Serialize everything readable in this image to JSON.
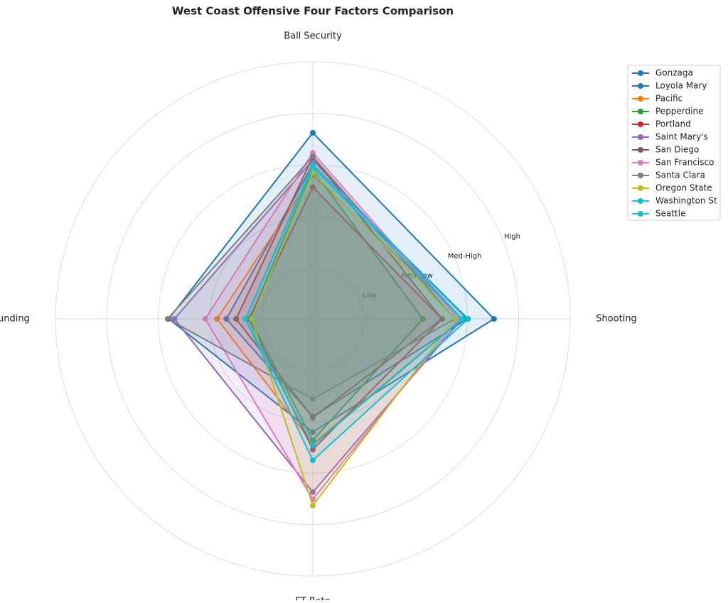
{
  "chart_data": {
    "type": "radar",
    "title": "West Coast Offensive Four Factors Comparison",
    "categories": [
      "Shooting",
      "Ball Security",
      "Off Rebounding",
      "FT Rate"
    ],
    "ylim": [
      0,
      5
    ],
    "yticks": [
      {
        "value": 1,
        "label": "Low"
      },
      {
        "value": 2,
        "label": "Med-Low"
      },
      {
        "value": 3,
        "label": "Med-High"
      },
      {
        "value": 4,
        "label": "High"
      }
    ],
    "grid": true,
    "legend": "upper right",
    "series": [
      {
        "name": "Gonzaga",
        "color": "#1f77b4",
        "values": [
          3.52,
          3.62,
          2.8,
          2.2
        ]
      },
      {
        "name": "Loyola Mary",
        "color": "#1f77b4",
        "values": [
          3.0,
          3.0,
          1.68,
          1.9
        ]
      },
      {
        "name": "Pacific",
        "color": "#ff7f0e",
        "values": [
          2.9,
          2.8,
          1.86,
          2.43
        ]
      },
      {
        "name": "Pepperdine",
        "color": "#2ca02c",
        "values": [
          2.14,
          2.9,
          1.22,
          2.36
        ]
      },
      {
        "name": "Portland",
        "color": "#d62728",
        "values": [
          2.51,
          2.56,
          1.24,
          2.54
        ]
      },
      {
        "name": "Saint Mary's",
        "color": "#9467bd",
        "values": [
          2.9,
          3.09,
          2.69,
          3.37
        ]
      },
      {
        "name": "San Diego",
        "color": "#8c564b",
        "values": [
          2.51,
          3.15,
          1.49,
          1.92
        ]
      },
      {
        "name": "San Francisco",
        "color": "#e377c2",
        "values": [
          2.83,
          3.23,
          2.09,
          3.51
        ]
      },
      {
        "name": "Santa Clara",
        "color": "#7f7f7f",
        "values": [
          2.76,
          3.16,
          2.82,
          1.56
        ]
      },
      {
        "name": "Oregon State",
        "color": "#bcbd22",
        "values": [
          2.76,
          2.85,
          1.19,
          3.63
        ]
      },
      {
        "name": "Washington St",
        "color": "#17becf",
        "values": [
          2.9,
          2.96,
          1.31,
          2.46
        ]
      },
      {
        "name": "Seattle",
        "color": "#17becf",
        "values": [
          3.02,
          3.0,
          1.31,
          2.75
        ]
      }
    ]
  }
}
